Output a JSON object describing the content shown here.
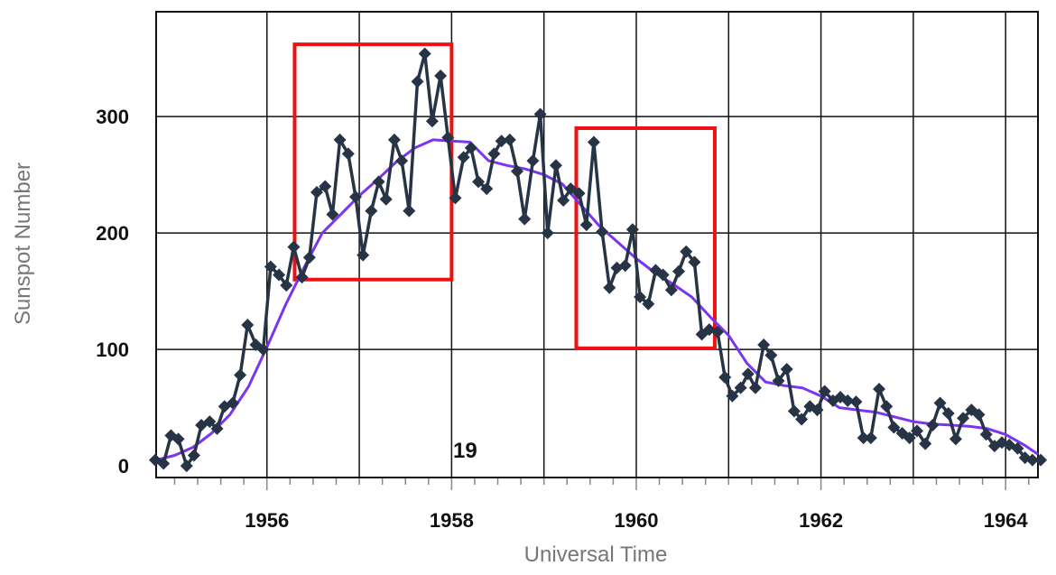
{
  "chart_data": {
    "type": "line",
    "xlabel": "Universal Time",
    "ylabel": "Sunspot Number",
    "xlim": [
      1954.8,
      1964.35
    ],
    "ylim": [
      -10,
      390
    ],
    "x_ticks": [
      1956,
      1958,
      1960,
      1962,
      1964
    ],
    "x_tick_labels": [
      "1956",
      "1958",
      "1960",
      "1962",
      "1964"
    ],
    "y_ticks": [
      0,
      100,
      200,
      300
    ],
    "y_tick_labels": [
      "0",
      "100",
      "200",
      "300"
    ],
    "grid": true,
    "annotation": "19",
    "highlight_boxes": [
      {
        "x0": 1956.3,
        "x1": 1958.0,
        "y0": 160,
        "y1": 362
      },
      {
        "x0": 1959.35,
        "x1": 1960.85,
        "y0": 101,
        "y1": 290
      }
    ],
    "colors": {
      "monthly": "#263445",
      "smoothed": "#7b35f0",
      "box": "#ee1111",
      "grid": "#111111"
    },
    "series": [
      {
        "marker": "diamond",
        "x": [
          1954.79,
          1954.88,
          1954.96,
          1955.04,
          1955.13,
          1955.21,
          1955.29,
          1955.38,
          1955.46,
          1955.54,
          1955.63,
          1955.71,
          1955.79,
          1955.88,
          1955.96,
          1956.04,
          1956.13,
          1956.21,
          1956.29,
          1956.38,
          1956.46,
          1956.54,
          1956.63,
          1956.71,
          1956.79,
          1956.88,
          1956.96,
          1957.04,
          1957.13,
          1957.21,
          1957.29,
          1957.38,
          1957.46,
          1957.54,
          1957.63,
          1957.71,
          1957.79,
          1957.88,
          1957.96,
          1958.04,
          1958.13,
          1958.21,
          1958.29,
          1958.38,
          1958.46,
          1958.54,
          1958.63,
          1958.71,
          1958.79,
          1958.88,
          1958.96,
          1959.04,
          1959.13,
          1959.21,
          1959.29,
          1959.38,
          1959.46,
          1959.54,
          1959.63,
          1959.71,
          1959.79,
          1959.88,
          1959.96,
          1960.04,
          1960.13,
          1960.21,
          1960.29,
          1960.38,
          1960.46,
          1960.54,
          1960.63,
          1960.71,
          1960.79,
          1960.88,
          1960.96,
          1961.04,
          1961.13,
          1961.21,
          1961.29,
          1961.38,
          1961.46,
          1961.54,
          1961.63,
          1961.71,
          1961.79,
          1961.88,
          1961.96,
          1962.04,
          1962.13,
          1962.21,
          1962.29,
          1962.38,
          1962.46,
          1962.54,
          1962.63,
          1962.71,
          1962.79,
          1962.88,
          1962.96,
          1963.04,
          1963.13,
          1963.21,
          1963.29,
          1963.38,
          1963.46,
          1963.54,
          1963.63,
          1963.71,
          1963.79,
          1963.88,
          1963.96,
          1964.04,
          1964.13,
          1964.21,
          1964.29,
          1964.38
        ],
        "y": [
          5,
          2,
          26,
          23,
          0,
          9,
          35,
          38,
          32,
          51,
          54,
          78,
          121,
          104,
          100,
          171,
          164,
          155,
          188,
          162,
          179,
          235,
          240,
          216,
          280,
          268,
          231,
          181,
          219,
          244,
          229,
          280,
          262,
          219,
          330,
          354,
          296,
          335,
          282,
          230,
          265,
          273,
          244,
          238,
          268,
          279,
          280,
          253,
          212,
          262,
          302,
          200,
          258,
          228,
          238,
          234,
          207,
          278,
          201,
          153,
          170,
          172,
          203,
          145,
          139,
          168,
          164,
          151,
          167,
          184,
          175,
          113,
          117,
          115,
          76,
          60,
          67,
          79,
          67,
          104,
          95,
          73,
          83,
          47,
          40,
          51,
          48,
          64,
          56,
          59,
          56,
          55,
          24,
          24,
          66,
          51,
          33,
          28,
          24,
          30,
          19,
          35,
          54,
          45,
          23,
          41,
          48,
          44,
          27,
          17,
          20,
          18,
          15,
          7,
          5,
          5
        ]
      },
      {
        "x": [
          1954.8,
          1955.0,
          1955.2,
          1955.4,
          1955.6,
          1955.8,
          1956.0,
          1956.2,
          1956.4,
          1956.6,
          1956.8,
          1957.0,
          1957.2,
          1957.4,
          1957.6,
          1957.8,
          1958.0,
          1958.2,
          1958.4,
          1958.6,
          1958.8,
          1959.0,
          1959.2,
          1959.4,
          1959.6,
          1959.8,
          1960.0,
          1960.2,
          1960.4,
          1960.6,
          1960.8,
          1961.0,
          1961.2,
          1961.4,
          1961.6,
          1961.8,
          1962.0,
          1962.2,
          1962.4,
          1962.6,
          1962.8,
          1963.0,
          1963.2,
          1963.4,
          1963.6,
          1963.8,
          1964.0,
          1964.2,
          1964.35
        ],
        "y": [
          5,
          9,
          16,
          28,
          44,
          68,
          102,
          138,
          170,
          200,
          216,
          232,
          246,
          261,
          273,
          280,
          279,
          278,
          262,
          258,
          255,
          250,
          242,
          224,
          206,
          192,
          178,
          166,
          156,
          145,
          128,
          112,
          88,
          72,
          69,
          67,
          60,
          50,
          48,
          46,
          42,
          38,
          36,
          35,
          34,
          32,
          27,
          18,
          10
        ]
      }
    ]
  }
}
